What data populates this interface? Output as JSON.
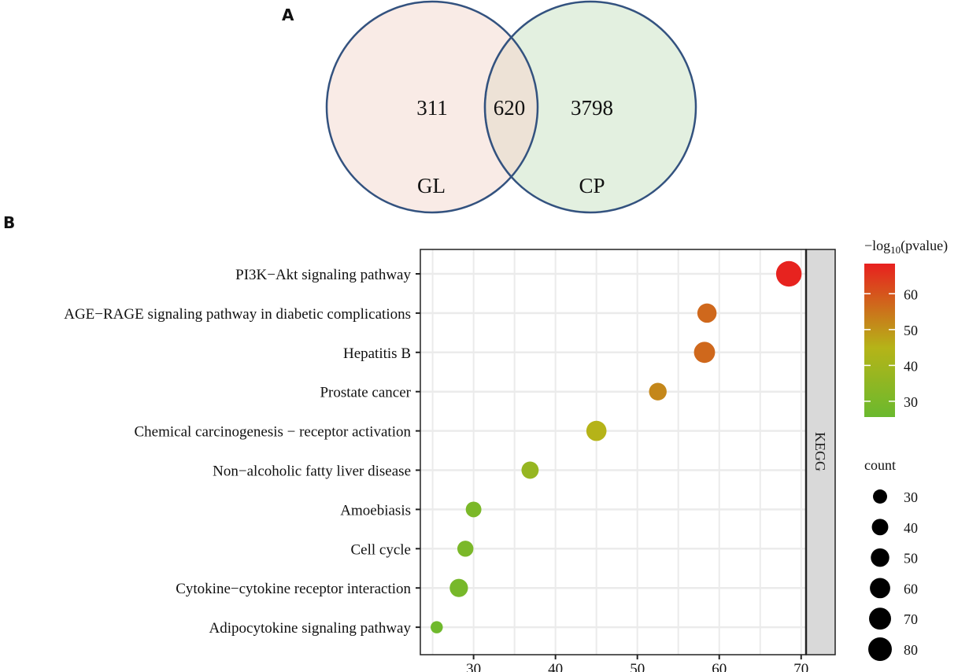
{
  "panels": {
    "a_label": "A",
    "b_label": "B"
  },
  "venn": {
    "sets": [
      {
        "name": "GL",
        "only": "311",
        "color": "#f9ebe6"
      },
      {
        "name": "CP",
        "only": "3798",
        "color": "#e3f0e0"
      }
    ],
    "intersection": "620",
    "intersection_color": "#ede2d6",
    "stroke_color": "#33527f"
  },
  "chart_data": {
    "type": "scatter",
    "title": "",
    "xlabel": "",
    "ylabel": "",
    "facet_label": "KEGG",
    "xlim": [
      23.5,
      70.6
    ],
    "xticks": [
      30,
      40,
      50,
      60,
      70
    ],
    "grid": true,
    "categories": [
      "PI3K−Akt signaling pathway",
      "AGE−RAGE signaling pathway in diabetic complications",
      "Hepatitis B",
      "Prostate cancer",
      "Chemical carcinogenesis − receptor activation",
      "Non−alcoholic fatty liver disease",
      "Amoebiasis",
      "Cell cycle",
      "Cytokine−cytokine receptor interaction",
      "Adipocytokine signaling pathway"
    ],
    "x": [
      68.5,
      58.5,
      58.2,
      52.5,
      45.0,
      36.9,
      30.0,
      29.0,
      28.2,
      25.5
    ],
    "neg_log10_pvalue": [
      68,
      57,
      57,
      52,
      45,
      37,
      30,
      30,
      29,
      27
    ],
    "count": [
      88,
      50,
      60,
      42,
      55,
      40,
      33,
      35,
      45,
      20
    ],
    "color_legend": {
      "title_prefix": "−log",
      "title_sub": "10",
      "title_suffix": "(pvalue)",
      "range": [
        25.6,
        68.4
      ],
      "ticks": [
        60,
        50,
        40,
        30
      ],
      "low_color": "#6ab92e",
      "mid_color": "#b5b418",
      "high_color": "#e8201f"
    },
    "size_legend": {
      "title": "count",
      "values": [
        30,
        40,
        50,
        60,
        70,
        80
      ]
    }
  }
}
